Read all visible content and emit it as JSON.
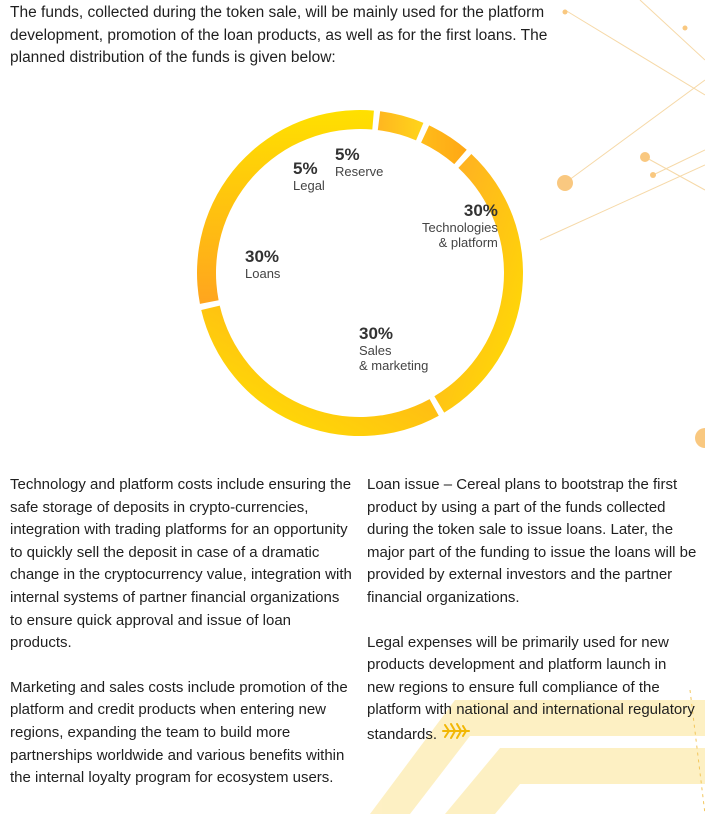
{
  "intro_text": "The funds, collected during the token sale, will be mainly used for the platform development, promotion of the loan products, as well as for the first loans. The planned distribution of the funds is given below:",
  "chart_data": {
    "type": "donut",
    "segments": [
      {
        "percent_label": "30%",
        "name": "Technologies\n& platform",
        "value": 30
      },
      {
        "percent_label": "30%",
        "name": "Sales\n& marketing",
        "value": 30
      },
      {
        "percent_label": "30%",
        "name": "Loans",
        "value": 30
      },
      {
        "percent_label": "5%",
        "name": "Legal",
        "value": 5
      },
      {
        "percent_label": "5%",
        "name": "Reserve",
        "value": 5
      }
    ],
    "colors": [
      "#FFB21E",
      "#FFD20A",
      "#FFB21E",
      "#FFC61C",
      "#FFAE14"
    ]
  },
  "left_column": [
    "Technology and platform costs include ensuring the safe storage of deposits in crypto-currencies, integration with trading platforms for an opportunity to quickly sell the deposit in case of a dramatic change in the cryptocurrency value, integration with internal systems of partner financial organizations to ensure quick approval and issue of loan products.",
    "Marketing and sales costs include promotion of the platform and credit products when entering new regions, expanding the team to build more partnerships worldwide and various benefits within the internal loyalty program for ecosystem users."
  ],
  "right_column": [
    "Loan issue – Cereal plans to bootstrap the first product by using a part of the funds collected during the token sale to issue loans. Later, the major part of the funding to issue the loans will be provided by external investors and the partner financial organizations.",
    "Legal expenses will be primarily used for new products development and platform launch in new regions to ensure full compliance of the platform with national and international regulatory standards."
  ],
  "icons": {
    "end_mark": "wheat-leaf-icon"
  }
}
